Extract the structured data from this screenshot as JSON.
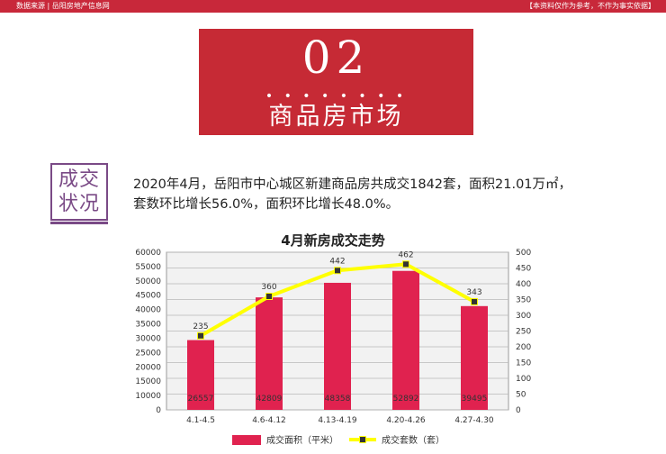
{
  "header": {
    "source": "数据来源 | 岳阳房地产信息网",
    "disclaimer": "【本资料仅作为参考，不作为事实依据】"
  },
  "banner": {
    "number": "02",
    "dots": "• • • • • • • •",
    "title": "商品房市场"
  },
  "badge": {
    "line1": "成交",
    "line2": "状况"
  },
  "summary": {
    "line1": "2020年4月，岳阳市中心城区新建商品房共成交1842套，面积21.01万㎡，",
    "line2": "套数环比增长56.0%，面积环比增长48.0%。"
  },
  "colors": {
    "bar": "#e0224f",
    "line": "#ffff00",
    "banner": "#c62a35",
    "badge": "#7a4a86"
  },
  "chart_data": {
    "type": "bar",
    "title": "4月新房成交走势",
    "categories": [
      "4.1-4.5",
      "4.6-4.12",
      "4.13-4.19",
      "4.20-4.26",
      "4.27-4.30"
    ],
    "series": [
      {
        "name": "成交面积（平米）",
        "type": "bar",
        "axis": "left",
        "values": [
          26557,
          42809,
          48358,
          52892,
          39495
        ]
      },
      {
        "name": "成交套数（套）",
        "type": "line",
        "axis": "right",
        "values": [
          235,
          360,
          442,
          462,
          343
        ]
      }
    ],
    "y_left": {
      "range": [
        0,
        60000
      ],
      "ticks": [
        "0",
        "10000",
        "15000",
        "20000",
        "25000",
        "30000",
        "35000",
        "40000",
        "45000",
        "50000",
        "55000",
        "60000"
      ]
    },
    "y_right": {
      "range": [
        0,
        500
      ],
      "ticks": [
        "0",
        "50",
        "100",
        "150",
        "200",
        "250",
        "300",
        "350",
        "400",
        "450",
        "500"
      ]
    },
    "grid": true,
    "legend_position": "bottom"
  }
}
